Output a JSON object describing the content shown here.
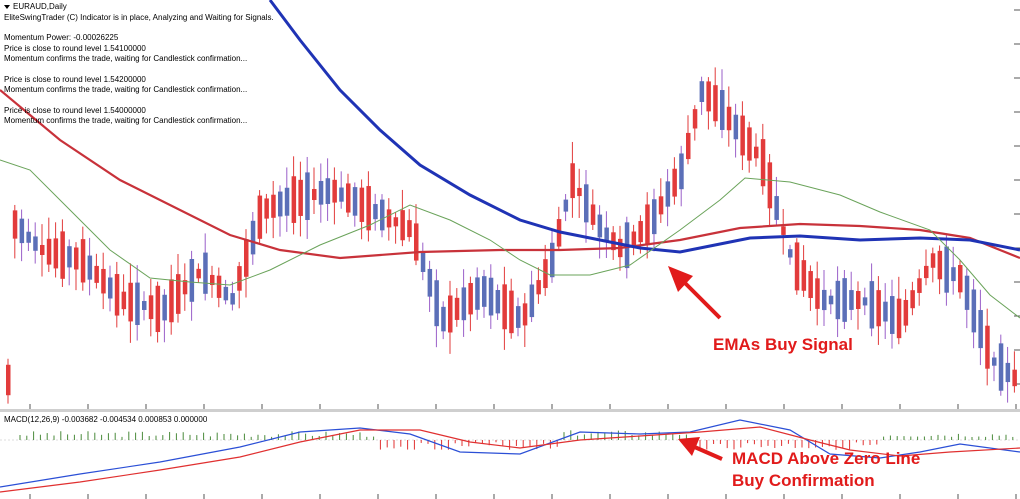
{
  "chart": {
    "symbol_title": "EURAUD,Daily",
    "indicator_status": "EliteSwingTrader (C) Indicator is in place, Analyzing and Waiting for Signals.",
    "messages": [
      "Momentum Power: -0.00026225",
      "Price is close to round level 1.54100000",
      "Momentum confirms the trade, waiting for Candlestick confirmation...",
      "Price is close to round level 1.54200000",
      "Momentum confirms the trade, waiting for Candlestick confirmation...",
      "Price is close to round level 1.54000000",
      "Momentum confirms the trade, waiting for Candlestick confirmation..."
    ]
  },
  "macd": {
    "label": "MACD(12,26,9) -0.003682 -0.004534 0.000853 0.000000"
  },
  "annotations": {
    "ema_signal": "EMAs Buy Signal",
    "macd_line1": "MACD Above Zero Line",
    "macd_line2": "Buy Confirmation"
  },
  "colors": {
    "bull_candle": "#5b6fb8",
    "bear_candle": "#e23b3b",
    "bull_wick": "#9a5fc9",
    "bear_wick": "#e23b3b",
    "ema_fast": "#6aa35a",
    "ema_mid": "#c8323a",
    "ema_slow": "#1f33b5",
    "ema_long_red": "#c8323a",
    "macd_line": "#2b4fd6",
    "signal_line": "#e03030",
    "annotation": "#e11b1b"
  }
}
